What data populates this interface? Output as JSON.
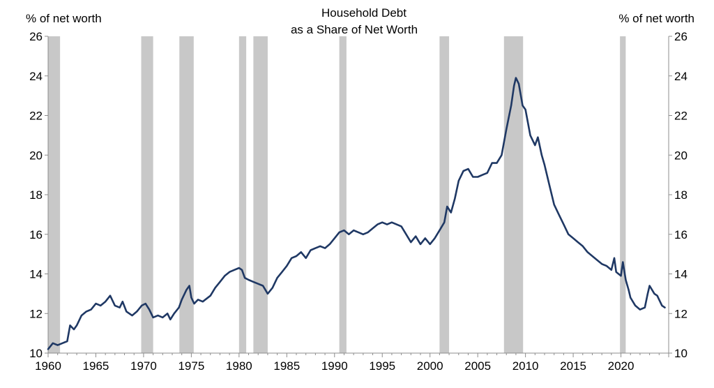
{
  "chart_data": {
    "type": "line",
    "title": [
      "Household Debt",
      "as a Share of Net Worth"
    ],
    "ylabel_left": "% of net worth",
    "ylabel_right": "% of net worth",
    "xlim": [
      1960,
      2025
    ],
    "ylim": [
      10,
      26
    ],
    "x_ticks": [
      "1960",
      "1965",
      "1970",
      "1975",
      "1980",
      "1985",
      "1990",
      "1995",
      "2000",
      "2005",
      "2010",
      "2015",
      "2020"
    ],
    "y_ticks": [
      "10",
      "12",
      "14",
      "16",
      "18",
      "20",
      "22",
      "24",
      "26"
    ],
    "grid": false,
    "line_color": "#1f3864",
    "recession_color": "#c8c8c8",
    "recessions": [
      [
        1960.0,
        1961.25
      ],
      [
        1969.75,
        1971.0
      ],
      [
        1973.75,
        1975.25
      ],
      [
        1980.0,
        1980.75
      ],
      [
        1981.5,
        1983.0
      ],
      [
        1990.5,
        1991.25
      ],
      [
        2001.0,
        2002.0
      ],
      [
        2007.75,
        2009.75
      ],
      [
        2019.9,
        2020.5
      ]
    ],
    "series": [
      {
        "values": [
          [
            1960.0,
            10.2
          ],
          [
            1960.5,
            10.5
          ],
          [
            1961.0,
            10.4
          ],
          [
            1961.5,
            10.5
          ],
          [
            1962.0,
            10.6
          ],
          [
            1962.3,
            11.4
          ],
          [
            1962.7,
            11.2
          ],
          [
            1963.0,
            11.4
          ],
          [
            1963.5,
            11.9
          ],
          [
            1964.0,
            12.1
          ],
          [
            1964.5,
            12.2
          ],
          [
            1965.0,
            12.5
          ],
          [
            1965.5,
            12.4
          ],
          [
            1966.0,
            12.6
          ],
          [
            1966.5,
            12.9
          ],
          [
            1967.0,
            12.4
          ],
          [
            1967.5,
            12.3
          ],
          [
            1967.8,
            12.6
          ],
          [
            1968.2,
            12.1
          ],
          [
            1968.8,
            11.9
          ],
          [
            1969.3,
            12.1
          ],
          [
            1969.8,
            12.4
          ],
          [
            1970.2,
            12.5
          ],
          [
            1970.6,
            12.2
          ],
          [
            1971.0,
            11.8
          ],
          [
            1971.5,
            11.9
          ],
          [
            1972.0,
            11.8
          ],
          [
            1972.5,
            12.0
          ],
          [
            1972.8,
            11.7
          ],
          [
            1973.2,
            12.0
          ],
          [
            1973.7,
            12.3
          ],
          [
            1974.0,
            12.7
          ],
          [
            1974.5,
            13.2
          ],
          [
            1974.8,
            13.4
          ],
          [
            1975.0,
            12.8
          ],
          [
            1975.3,
            12.5
          ],
          [
            1975.7,
            12.7
          ],
          [
            1976.2,
            12.6
          ],
          [
            1977.0,
            12.9
          ],
          [
            1977.5,
            13.3
          ],
          [
            1978.0,
            13.6
          ],
          [
            1978.5,
            13.9
          ],
          [
            1979.0,
            14.1
          ],
          [
            1979.5,
            14.2
          ],
          [
            1980.0,
            14.3
          ],
          [
            1980.3,
            14.2
          ],
          [
            1980.6,
            13.8
          ],
          [
            1981.0,
            13.7
          ],
          [
            1981.5,
            13.6
          ],
          [
            1982.0,
            13.5
          ],
          [
            1982.5,
            13.4
          ],
          [
            1983.0,
            13.0
          ],
          [
            1983.5,
            13.3
          ],
          [
            1984.0,
            13.8
          ],
          [
            1984.5,
            14.1
          ],
          [
            1985.0,
            14.4
          ],
          [
            1985.5,
            14.8
          ],
          [
            1986.0,
            14.9
          ],
          [
            1986.5,
            15.1
          ],
          [
            1987.0,
            14.8
          ],
          [
            1987.5,
            15.2
          ],
          [
            1988.0,
            15.3
          ],
          [
            1988.5,
            15.4
          ],
          [
            1989.0,
            15.3
          ],
          [
            1989.5,
            15.5
          ],
          [
            1990.0,
            15.8
          ],
          [
            1990.5,
            16.1
          ],
          [
            1991.0,
            16.2
          ],
          [
            1991.5,
            16.0
          ],
          [
            1992.0,
            16.2
          ],
          [
            1992.5,
            16.1
          ],
          [
            1993.0,
            16.0
          ],
          [
            1993.5,
            16.1
          ],
          [
            1994.0,
            16.3
          ],
          [
            1994.5,
            16.5
          ],
          [
            1995.0,
            16.6
          ],
          [
            1995.5,
            16.5
          ],
          [
            1996.0,
            16.6
          ],
          [
            1996.5,
            16.5
          ],
          [
            1997.0,
            16.4
          ],
          [
            1997.5,
            16.0
          ],
          [
            1998.0,
            15.6
          ],
          [
            1998.5,
            15.9
          ],
          [
            1999.0,
            15.5
          ],
          [
            1999.5,
            15.8
          ],
          [
            2000.0,
            15.5
          ],
          [
            2000.5,
            15.8
          ],
          [
            2001.0,
            16.2
          ],
          [
            2001.5,
            16.6
          ],
          [
            2001.8,
            17.4
          ],
          [
            2002.2,
            17.1
          ],
          [
            2002.6,
            17.8
          ],
          [
            2003.0,
            18.7
          ],
          [
            2003.5,
            19.2
          ],
          [
            2004.0,
            19.3
          ],
          [
            2004.5,
            18.9
          ],
          [
            2005.0,
            18.9
          ],
          [
            2005.5,
            19.0
          ],
          [
            2006.0,
            19.1
          ],
          [
            2006.5,
            19.6
          ],
          [
            2007.0,
            19.6
          ],
          [
            2007.5,
            20.0
          ],
          [
            2008.0,
            21.3
          ],
          [
            2008.5,
            22.5
          ],
          [
            2008.8,
            23.5
          ],
          [
            2009.0,
            23.9
          ],
          [
            2009.3,
            23.6
          ],
          [
            2009.7,
            22.5
          ],
          [
            2010.0,
            22.3
          ],
          [
            2010.5,
            21.0
          ],
          [
            2011.0,
            20.5
          ],
          [
            2011.3,
            20.9
          ],
          [
            2011.7,
            20.0
          ],
          [
            2012.0,
            19.5
          ],
          [
            2012.5,
            18.5
          ],
          [
            2013.0,
            17.5
          ],
          [
            2013.5,
            17.0
          ],
          [
            2014.0,
            16.5
          ],
          [
            2014.5,
            16.0
          ],
          [
            2015.0,
            15.8
          ],
          [
            2015.5,
            15.6
          ],
          [
            2016.0,
            15.4
          ],
          [
            2016.5,
            15.1
          ],
          [
            2017.0,
            14.9
          ],
          [
            2017.5,
            14.7
          ],
          [
            2018.0,
            14.5
          ],
          [
            2018.5,
            14.4
          ],
          [
            2019.0,
            14.2
          ],
          [
            2019.3,
            14.8
          ],
          [
            2019.5,
            14.1
          ],
          [
            2020.0,
            13.9
          ],
          [
            2020.2,
            14.6
          ],
          [
            2020.5,
            13.7
          ],
          [
            2020.8,
            13.2
          ],
          [
            2021.0,
            12.8
          ],
          [
            2021.5,
            12.4
          ],
          [
            2022.0,
            12.2
          ],
          [
            2022.5,
            12.3
          ],
          [
            2022.8,
            13.0
          ],
          [
            2023.0,
            13.4
          ],
          [
            2023.5,
            13.0
          ],
          [
            2023.8,
            12.9
          ],
          [
            2024.0,
            12.7
          ],
          [
            2024.3,
            12.4
          ],
          [
            2024.6,
            12.3
          ]
        ]
      }
    ]
  }
}
